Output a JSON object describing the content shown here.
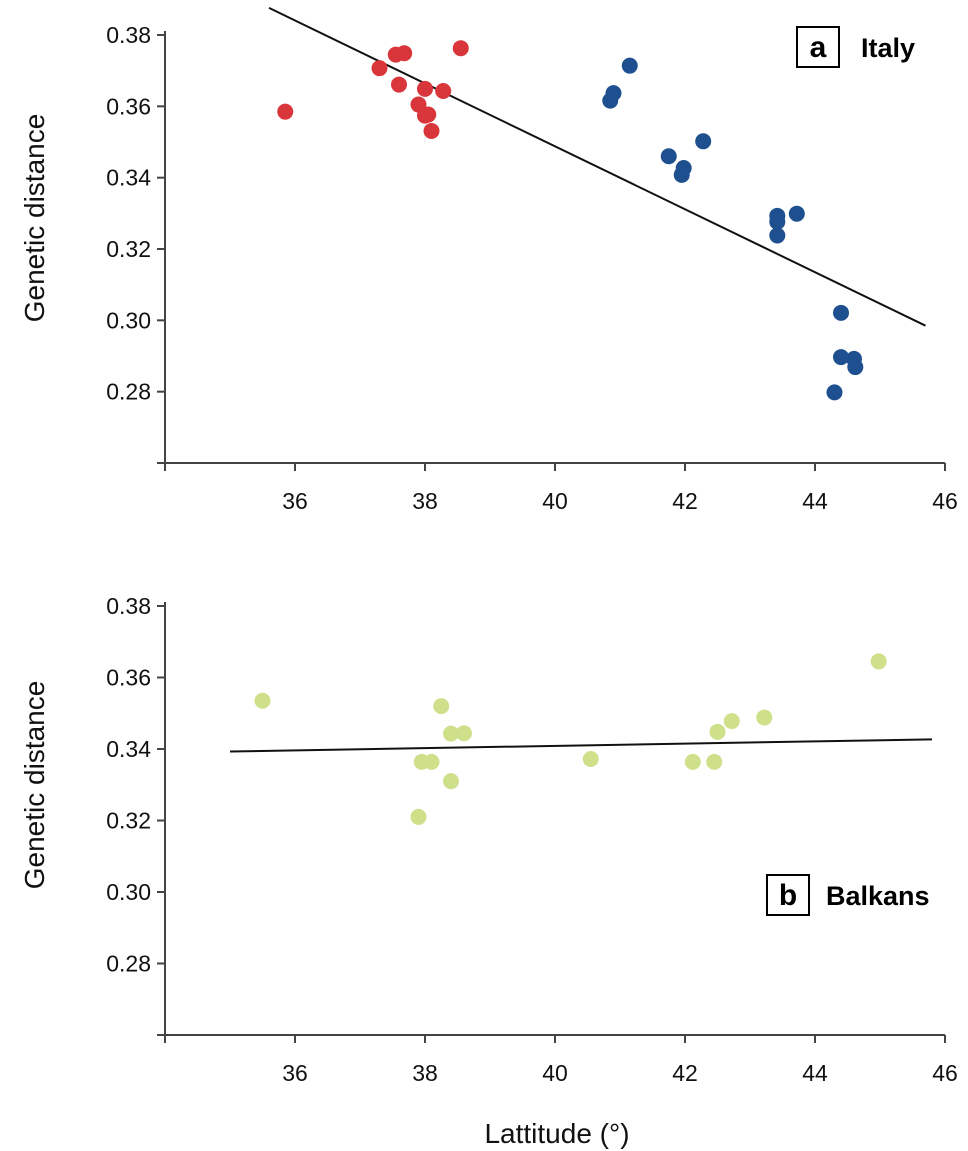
{
  "colors": {
    "south_italy": "#d9363b",
    "north_italy": "#1e4f8f",
    "balkans": "#cfe08a",
    "axis": "#444444",
    "trend": "#111111"
  },
  "xlabel": "Lattitude (°)",
  "chart_data": [
    {
      "type": "scatter",
      "panel_letter": "a",
      "panel_name": "Italy",
      "ylabel": "Genetic distance",
      "xlim": [
        34,
        46
      ],
      "ylim": [
        0.26,
        0.38
      ],
      "xticks": [
        "36",
        "38",
        "40",
        "42",
        "44",
        "46"
      ],
      "yticks": [
        "0.28",
        "0.30",
        "0.32",
        "0.34",
        "0.36",
        "0.38"
      ],
      "series": [
        {
          "color": "#d9363b",
          "points": [
            [
              35.85,
              0.3585
            ],
            [
              37.3,
              0.3707
            ],
            [
              37.55,
              0.3745
            ],
            [
              37.68,
              0.3749
            ],
            [
              37.6,
              0.3661
            ],
            [
              37.9,
              0.3605
            ],
            [
              38.0,
              0.3649
            ],
            [
              38.0,
              0.3574
            ],
            [
              38.05,
              0.3577
            ],
            [
              38.1,
              0.3531
            ],
            [
              38.28,
              0.3643
            ],
            [
              38.55,
              0.3763
            ]
          ]
        },
        {
          "color": "#1e4f8f",
          "points": [
            [
              40.85,
              0.3616
            ],
            [
              40.9,
              0.3637
            ],
            [
              41.15,
              0.3714
            ],
            [
              41.75,
              0.346
            ],
            [
              41.95,
              0.3408
            ],
            [
              41.98,
              0.3427
            ],
            [
              42.28,
              0.3502
            ],
            [
              43.42,
              0.3293
            ],
            [
              43.42,
              0.3276
            ],
            [
              43.42,
              0.3238
            ],
            [
              43.72,
              0.3299
            ],
            [
              44.4,
              0.3021
            ],
            [
              44.4,
              0.2897
            ],
            [
              44.6,
              0.2892
            ],
            [
              44.62,
              0.2869
            ],
            [
              44.3,
              0.2798
            ]
          ]
        }
      ],
      "trendline": {
        "from": [
          35.6,
          0.3876
        ],
        "to": [
          45.7,
          0.2985
        ]
      }
    },
    {
      "type": "scatter",
      "panel_letter": "b",
      "panel_name": "Balkans",
      "ylabel": "Genetic distance",
      "xlim": [
        34,
        46
      ],
      "ylim": [
        0.26,
        0.38
      ],
      "xticks": [
        "36",
        "38",
        "40",
        "42",
        "44",
        "46"
      ],
      "yticks": [
        "0.28",
        "0.30",
        "0.32",
        "0.34",
        "0.36",
        "0.38"
      ],
      "series": [
        {
          "color": "#cfe08a",
          "points": [
            [
              35.5,
              0.3535
            ],
            [
              37.9,
              0.321
            ],
            [
              37.95,
              0.3364
            ],
            [
              38.1,
              0.3364
            ],
            [
              38.25,
              0.352
            ],
            [
              38.4,
              0.3443
            ],
            [
              38.4,
              0.331
            ],
            [
              38.6,
              0.3444
            ],
            [
              40.55,
              0.3372
            ],
            [
              42.12,
              0.3364
            ],
            [
              42.45,
              0.3364
            ],
            [
              42.5,
              0.3448
            ],
            [
              42.72,
              0.3478
            ],
            [
              43.22,
              0.3488
            ],
            [
              44.98,
              0.3645
            ]
          ]
        }
      ],
      "trendline": {
        "from": [
          35.0,
          0.3393
        ],
        "to": [
          45.8,
          0.3427
        ]
      }
    }
  ]
}
